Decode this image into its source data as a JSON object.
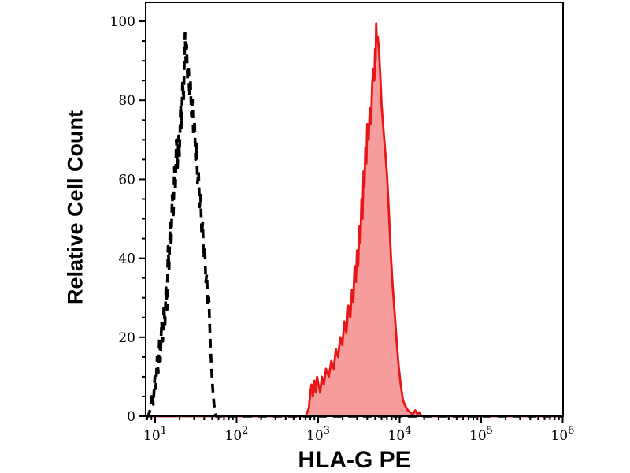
{
  "figure": {
    "xlabel": "HLA-G PE",
    "ylabel": "Relative Cell Count"
  },
  "chart_data": {
    "type": "area",
    "subtype": "flow-cytometry-histogram-overlay",
    "title": "",
    "xlabel": "HLA-G PE",
    "ylabel": "Relative Cell Count",
    "x_scale": "log10",
    "xlim_log10": [
      0.884,
      6.005
    ],
    "ylim": [
      0,
      104.8
    ],
    "y_ticks_major": [
      0,
      20,
      40,
      60,
      80,
      100
    ],
    "y_minor_step": 5,
    "x_decades": [
      1,
      2,
      3,
      4,
      5,
      6
    ],
    "x_tick_label_base": "10",
    "grid": false,
    "legend": "none",
    "colors": {
      "axis": "#000000",
      "dashed_series_stroke": "#000000",
      "red_series_stroke": "#e81616",
      "red_series_fill": "#f69191"
    },
    "series": [
      {
        "name": "black-dashed-open-histogram",
        "style": "dashed",
        "stroke": "#000000",
        "fill": "none",
        "peak_x": 23.3,
        "peak_y": 97,
        "points": [
          [
            7.7,
            0
          ],
          [
            8.2,
            0
          ],
          [
            8.8,
            2
          ],
          [
            9.2,
            6
          ],
          [
            9.5,
            3
          ],
          [
            9.9,
            10
          ],
          [
            10.2,
            7
          ],
          [
            10.6,
            15
          ],
          [
            10.9,
            11
          ],
          [
            11.3,
            20
          ],
          [
            11.6,
            14
          ],
          [
            12.0,
            24
          ],
          [
            12.4,
            19
          ],
          [
            12.8,
            28
          ],
          [
            13.2,
            23
          ],
          [
            13.6,
            33
          ],
          [
            14.0,
            27
          ],
          [
            14.4,
            43
          ],
          [
            14.8,
            37
          ],
          [
            15.3,
            49
          ],
          [
            15.7,
            43
          ],
          [
            16.2,
            56
          ],
          [
            16.7,
            50
          ],
          [
            17.2,
            63
          ],
          [
            17.7,
            57
          ],
          [
            18.2,
            70
          ],
          [
            18.8,
            63
          ],
          [
            19.4,
            71
          ],
          [
            19.9,
            66
          ],
          [
            20.5,
            79
          ],
          [
            21.1,
            73
          ],
          [
            21.7,
            85
          ],
          [
            22.3,
            80
          ],
          [
            22.9,
            91
          ],
          [
            23.3,
            97
          ],
          [
            23.8,
            90
          ],
          [
            24.4,
            94
          ],
          [
            25.0,
            85
          ],
          [
            25.7,
            89
          ],
          [
            26.4,
            81
          ],
          [
            27.1,
            85
          ],
          [
            27.9,
            76
          ],
          [
            28.7,
            80
          ],
          [
            29.5,
            71
          ],
          [
            30.4,
            75
          ],
          [
            31.3,
            65
          ],
          [
            32.2,
            69
          ],
          [
            33.1,
            59
          ],
          [
            34.1,
            62
          ],
          [
            35.1,
            53
          ],
          [
            36.1,
            56
          ],
          [
            37.2,
            46
          ],
          [
            38.3,
            49
          ],
          [
            39.4,
            40
          ],
          [
            40.6,
            43
          ],
          [
            41.8,
            34
          ],
          [
            43.0,
            36
          ],
          [
            44.3,
            28
          ],
          [
            45.6,
            30
          ],
          [
            47.0,
            21
          ],
          [
            48.4,
            15
          ],
          [
            49.8,
            10
          ],
          [
            51.3,
            6
          ],
          [
            52.8,
            3
          ],
          [
            54.5,
            1
          ],
          [
            56,
            0
          ],
          [
            1011000,
            0
          ]
        ]
      },
      {
        "name": "red-filled-histogram",
        "style": "filled",
        "stroke": "#e81616",
        "fill": "#f69191",
        "peak_x": 5150,
        "peak_y": 99.5,
        "points": [
          [
            7.7,
            0
          ],
          [
            700,
            0
          ],
          [
            770,
            2
          ],
          [
            800,
            6
          ],
          [
            830,
            8
          ],
          [
            860,
            5
          ],
          [
            900,
            9
          ],
          [
            935,
            6
          ],
          [
            970,
            10
          ],
          [
            1010,
            8
          ],
          [
            1060,
            6
          ],
          [
            1110,
            10
          ],
          [
            1170,
            8
          ],
          [
            1250,
            12
          ],
          [
            1350,
            10
          ],
          [
            1450,
            14
          ],
          [
            1550,
            12
          ],
          [
            1650,
            17
          ],
          [
            1760,
            15
          ],
          [
            1870,
            20
          ],
          [
            1980,
            18
          ],
          [
            2100,
            24
          ],
          [
            2220,
            21
          ],
          [
            2350,
            28
          ],
          [
            2480,
            25
          ],
          [
            2600,
            32
          ],
          [
            2700,
            29
          ],
          [
            2800,
            38
          ],
          [
            2900,
            34
          ],
          [
            3000,
            42
          ],
          [
            3100,
            38
          ],
          [
            3200,
            48
          ],
          [
            3300,
            44
          ],
          [
            3400,
            55
          ],
          [
            3500,
            50
          ],
          [
            3600,
            62
          ],
          [
            3700,
            58
          ],
          [
            3800,
            68
          ],
          [
            3900,
            64
          ],
          [
            4000,
            74
          ],
          [
            4150,
            70
          ],
          [
            4300,
            78
          ],
          [
            4450,
            74
          ],
          [
            4600,
            84
          ],
          [
            4750,
            88
          ],
          [
            4900,
            85
          ],
          [
            5000,
            93
          ],
          [
            5080,
            90
          ],
          [
            5150,
            99.5
          ],
          [
            5250,
            95
          ],
          [
            5400,
            96
          ],
          [
            5600,
            92
          ],
          [
            5800,
            86
          ],
          [
            6000,
            79
          ],
          [
            6300,
            73
          ],
          [
            6600,
            68
          ],
          [
            7000,
            61
          ],
          [
            7400,
            51
          ],
          [
            7800,
            41
          ],
          [
            8200,
            33
          ],
          [
            8700,
            26
          ],
          [
            9200,
            19
          ],
          [
            9700,
            13
          ],
          [
            10300,
            8
          ],
          [
            11000,
            4
          ],
          [
            11800,
            2.5
          ],
          [
            12600,
            1.5
          ],
          [
            13500,
            1
          ],
          [
            14500,
            0.5
          ],
          [
            15500,
            1.5
          ],
          [
            16500,
            0.5
          ],
          [
            17500,
            1
          ],
          [
            18500,
            0
          ],
          [
            1011000,
            0
          ]
        ]
      }
    ]
  }
}
